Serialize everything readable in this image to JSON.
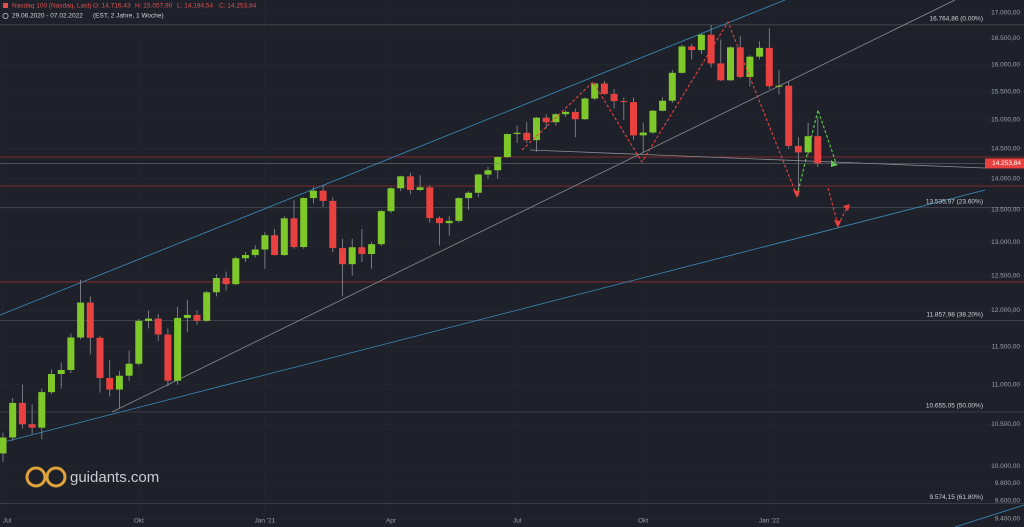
{
  "chart_data": {
    "type": "candlestick",
    "title": "Nasdaq 100 (Nasdaq, Last)",
    "ohlc_labels": [
      "O: 14.716,43",
      "H: 15.057,90",
      "L: 14.194,54",
      "C: 14.253,84"
    ],
    "period": "29.06.2020 - 07.02.2022",
    "settings": "(EST, 2 Jahre, 1 Woche)",
    "watermark": "guidants.com",
    "log_scale": true,
    "up_color": "#7ec82a",
    "down_color": "#e8413f",
    "ylim": [
      9312,
      17261
    ],
    "yticks": [
      {
        "value": 17000,
        "label": "17.000,00"
      },
      {
        "value": 16500,
        "label": "16.500,00"
      },
      {
        "value": 16000,
        "label": "16.000,00"
      },
      {
        "value": 15500,
        "label": "15.500,00"
      },
      {
        "value": 15000,
        "label": "15.000,00"
      },
      {
        "value": 14500,
        "label": "14.500,00"
      },
      {
        "value": 14000,
        "label": "14.000,00"
      },
      {
        "value": 13500,
        "label": "13.500,00"
      },
      {
        "value": 13000,
        "label": "13.000,00"
      },
      {
        "value": 12500,
        "label": "12.500,00"
      },
      {
        "value": 12000,
        "label": "12.000,00"
      },
      {
        "value": 11500,
        "label": "11.500,00"
      },
      {
        "value": 11000,
        "label": "11.000,00"
      },
      {
        "value": 10500,
        "label": "10.500,00"
      },
      {
        "value": 10000,
        "label": "10.000,00"
      },
      {
        "value": 9800,
        "label": "9.800,00"
      },
      {
        "value": 9600,
        "label": "9.600,00"
      },
      {
        "value": 9400,
        "label": "9.400,00"
      }
    ],
    "fib_levels": [
      {
        "value": 16764.86,
        "label": "16.764,86 (0.00%)"
      },
      {
        "value": 13535.97,
        "label": "13.535,97 (23.60%)"
      },
      {
        "value": 11857.98,
        "label": "11.857,98 (38.20%)"
      },
      {
        "value": 10655.05,
        "label": "10.655,05 (50.00%)"
      },
      {
        "value": 9574.15,
        "label": "9.574,15 (61.80%)"
      }
    ],
    "levels": [
      14362,
      13882,
      12407
    ],
    "last_price": {
      "value": 14253.84,
      "label": "14.253,84"
    },
    "categories": [
      "Jul",
      null,
      null,
      null,
      null,
      null,
      null,
      null,
      null,
      null,
      null,
      null,
      null,
      null,
      "Okt",
      null,
      null,
      null,
      null,
      null,
      null,
      null,
      null,
      null,
      null,
      null,
      null,
      "Jan '21",
      null,
      null,
      null,
      null,
      null,
      null,
      null,
      null,
      null,
      null,
      null,
      null,
      "Apr",
      null,
      null,
      null,
      null,
      null,
      null,
      null,
      null,
      null,
      null,
      null,
      null,
      "Jul",
      null,
      null,
      null,
      null,
      null,
      null,
      null,
      null,
      null,
      null,
      null,
      null,
      "Okt",
      null,
      null,
      null,
      null,
      null,
      null,
      null,
      null,
      null,
      null,
      null,
      null,
      "Jan '22",
      null,
      null,
      null,
      null,
      null
    ],
    "open": [
      10150,
      10341,
      10768,
      10503,
      10461,
      10905,
      11139,
      11192,
      11626,
      12111,
      11622,
      11087,
      10938,
      11117,
      11274,
      11854,
      11886,
      11666,
      11052,
      11895,
      11937,
      11855,
      12258,
      12465,
      12375,
      12756,
      12804,
      12888,
      13105,
      12804,
      13367,
      12925,
      13688,
      13807,
      13642,
      12909,
      12668,
      12922,
      12820,
      12968,
      13480,
      13846,
      14041,
      13818,
      13861,
      13371,
      13292,
      13327,
      13687,
      13773,
      14070,
      14141,
      14361,
      14754,
      14775,
      14648,
      15039,
      14959,
      15100,
      15141,
      15012,
      15380,
      15653,
      15464,
      15334,
      15316,
      14731,
      14780,
      15161,
      15340,
      15850,
      16347,
      16278,
      16573,
      16025,
      15712,
      16330,
      15773,
      16153,
      16320,
      15603,
      15612,
      14550,
      14440,
      14716.43
    ],
    "high": [
      10400,
      10830,
      11000,
      10750,
      10950,
      11200,
      11290,
      11680,
      12440,
      12200,
      11650,
      11320,
      11180,
      11450,
      11880,
      12000,
      11950,
      11750,
      12050,
      12150,
      12000,
      12280,
      12520,
      12560,
      12780,
      12850,
      12950,
      13150,
      13200,
      13400,
      13650,
      13700,
      13870,
      13900,
      13700,
      13050,
      13050,
      13200,
      13000,
      13500,
      13860,
      14050,
      14100,
      14060,
      13900,
      13400,
      13400,
      13700,
      13800,
      14080,
      14200,
      14370,
      14760,
      14900,
      14960,
      15050,
      15100,
      15120,
      15170,
      15200,
      15400,
      15670,
      15700,
      15550,
      15400,
      15400,
      14950,
      15180,
      15400,
      15900,
      16380,
      16400,
      16600,
      16765,
      16480,
      16350,
      16550,
      16180,
      16450,
      16700,
      15900,
      15700,
      14700,
      14950,
      15057.9
    ],
    "low": [
      10050,
      10300,
      10450,
      10380,
      10320,
      10880,
      10950,
      11150,
      11600,
      11400,
      10900,
      10850,
      10700,
      11050,
      11250,
      11750,
      11580,
      10980,
      11000,
      11700,
      11800,
      11840,
      12200,
      12280,
      12360,
      12700,
      12770,
      12600,
      12800,
      12790,
      12900,
      12900,
      13600,
      13550,
      12850,
      12200,
      12500,
      12700,
      12600,
      12940,
      13450,
      13800,
      13750,
      13800,
      13300,
      12950,
      13100,
      13300,
      13500,
      13700,
      14000,
      14000,
      14350,
      14600,
      14600,
      14450,
      14850,
      14900,
      15050,
      14700,
      15000,
      15350,
      15450,
      15200,
      15000,
      14650,
      14450,
      14750,
      15150,
      15300,
      15830,
      16100,
      16200,
      15950,
      15700,
      15700,
      15750,
      15600,
      16100,
      15550,
      15450,
      14500,
      13725,
      14400,
      14194.54
    ],
    "close": [
      10341,
      10768,
      10503,
      10461,
      10905,
      11139,
      11192,
      11626,
      12111,
      11622,
      11087,
      10938,
      11117,
      11274,
      11854,
      11886,
      11666,
      11052,
      11895,
      11937,
      11855,
      12258,
      12465,
      12375,
      12756,
      12804,
      12888,
      13105,
      12804,
      13367,
      12925,
      13688,
      13807,
      13642,
      12909,
      12668,
      12922,
      12820,
      12968,
      13480,
      13846,
      14041,
      13818,
      13861,
      13371,
      13292,
      13327,
      13687,
      13773,
      14070,
      14141,
      14361,
      14754,
      14775,
      14648,
      15039,
      14959,
      15100,
      15141,
      15012,
      15380,
      15653,
      15464,
      15334,
      15316,
      14731,
      14780,
      15161,
      15340,
      15850,
      16347,
      16278,
      16573,
      16025,
      15712,
      16330,
      15773,
      16153,
      16320,
      15603,
      15612,
      14550,
      14440,
      14716,
      14253.84
    ]
  }
}
